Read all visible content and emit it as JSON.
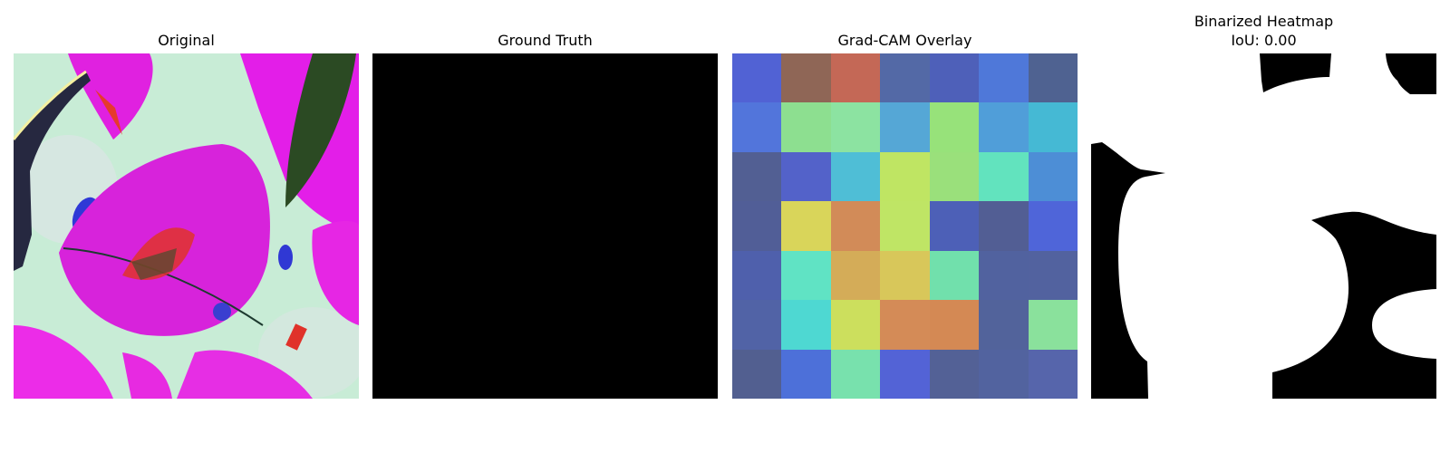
{
  "panels": {
    "original": {
      "title": "Original"
    },
    "ground_truth": {
      "title": "Ground Truth"
    },
    "gradcam": {
      "title": "Grad-CAM Overlay",
      "cells": [
        [
          "#5162d4",
          "#8f6656",
          "#c46856",
          "#5369a6",
          "#4e60b9",
          "#4f78d9",
          "#4f6291"
        ],
        [
          "#5275db",
          "#8ddf90",
          "#8ce3a1",
          "#55a7d6",
          "#97e27a",
          "#509ed9",
          "#45b9d4"
        ],
        [
          "#525f93",
          "#5362c9",
          "#4fbed6",
          "#bfe563",
          "#9ae07b",
          "#62e3be",
          "#4d8ed6"
        ],
        [
          "#515e97",
          "#d9d55a",
          "#d28b58",
          "#bfe565",
          "#4d60b7",
          "#525e94",
          "#4f65d9"
        ],
        [
          "#4f60ac",
          "#60e3c4",
          "#d4ac58",
          "#d8c75a",
          "#71e0ac",
          "#51629f",
          "#52629f"
        ],
        [
          "#5163a6",
          "#4ed8d2",
          "#ccdf5d",
          "#d48b57",
          "#d48954",
          "#52639b",
          "#8ae19c"
        ],
        [
          "#525f90",
          "#4d70d9",
          "#78e1ad",
          "#5363d6",
          "#536196",
          "#52639f",
          "#5665ab"
        ]
      ]
    },
    "binarized": {
      "title_line1": "Binarized Heatmap",
      "title_line2": "IoU: 0.00"
    }
  }
}
